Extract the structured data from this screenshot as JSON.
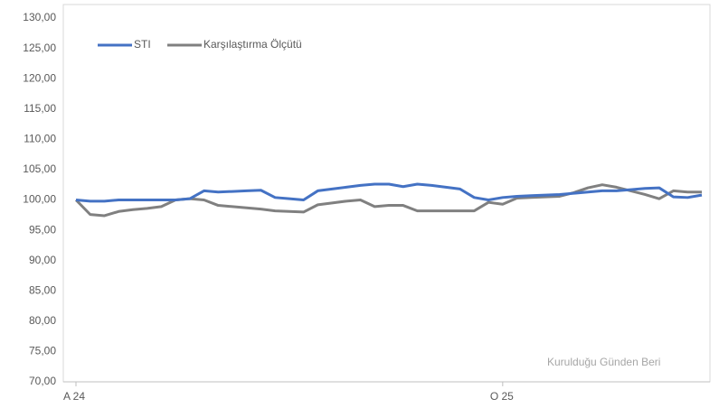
{
  "chart_data": {
    "type": "line",
    "categories": [
      "A 24",
      null,
      null,
      null,
      null,
      null,
      null,
      null,
      null,
      null,
      null,
      null,
      null,
      null,
      null,
      null,
      null,
      null,
      null,
      null,
      null,
      null,
      null,
      null,
      null,
      null,
      null,
      null,
      null,
      null,
      "O 25",
      null,
      null,
      null,
      null,
      null,
      null,
      null,
      null,
      null,
      null,
      null,
      null,
      null,
      null
    ],
    "series": [
      {
        "name": "STI",
        "color": "#4472c4",
        "values": [
          100,
          99.8,
          99.8,
          100,
          100,
          100,
          100,
          100,
          100.2,
          101.5,
          101.3,
          101.4,
          101.5,
          101.6,
          100.4,
          100.2,
          100,
          101.5,
          101.8,
          102.1,
          102.4,
          102.6,
          102.6,
          102.2,
          102.6,
          102.4,
          102.1,
          101.8,
          100.4,
          100,
          100.4,
          100.6,
          100.7,
          100.8,
          100.9,
          101.1,
          101.3,
          101.5,
          101.5,
          101.7,
          101.9,
          102,
          100.5,
          100.4,
          100.8
        ]
      },
      {
        "name": "Karşılaştırma Ölçütü",
        "color": "#808080",
        "values": [
          100,
          97.6,
          97.4,
          98.1,
          98.4,
          98.6,
          98.9,
          100,
          100.2,
          100,
          99.1,
          98.9,
          98.7,
          98.5,
          98.2,
          98.1,
          98,
          99.2,
          99.5,
          99.8,
          100,
          98.9,
          99.1,
          99.1,
          98.2,
          98.2,
          98.2,
          98.2,
          98.2,
          99.6,
          99.3,
          100.3,
          100.4,
          100.5,
          100.6,
          101.2,
          102,
          102.5,
          102.1,
          101.5,
          100.9,
          100.2,
          101.5,
          101.3,
          101.3
        ]
      }
    ],
    "ylim": [
      70,
      130
    ],
    "yticks": [
      {
        "value": 70,
        "label": "70,00"
      },
      {
        "value": 75,
        "label": "75,00"
      },
      {
        "value": 80,
        "label": "80,00"
      },
      {
        "value": 85,
        "label": "85,00"
      },
      {
        "value": 90,
        "label": "90,00"
      },
      {
        "value": 95,
        "label": "95,00"
      },
      {
        "value": 100,
        "label": "100,00"
      },
      {
        "value": 105,
        "label": "105,00"
      },
      {
        "value": 110,
        "label": "110,00"
      },
      {
        "value": 115,
        "label": "115,00"
      },
      {
        "value": 120,
        "label": "120,00"
      },
      {
        "value": 125,
        "label": "125,00"
      },
      {
        "value": 130,
        "label": "130,00"
      }
    ],
    "annotation": "Kurulduğu Günden Beri",
    "legend": "top-left",
    "grid": false
  }
}
